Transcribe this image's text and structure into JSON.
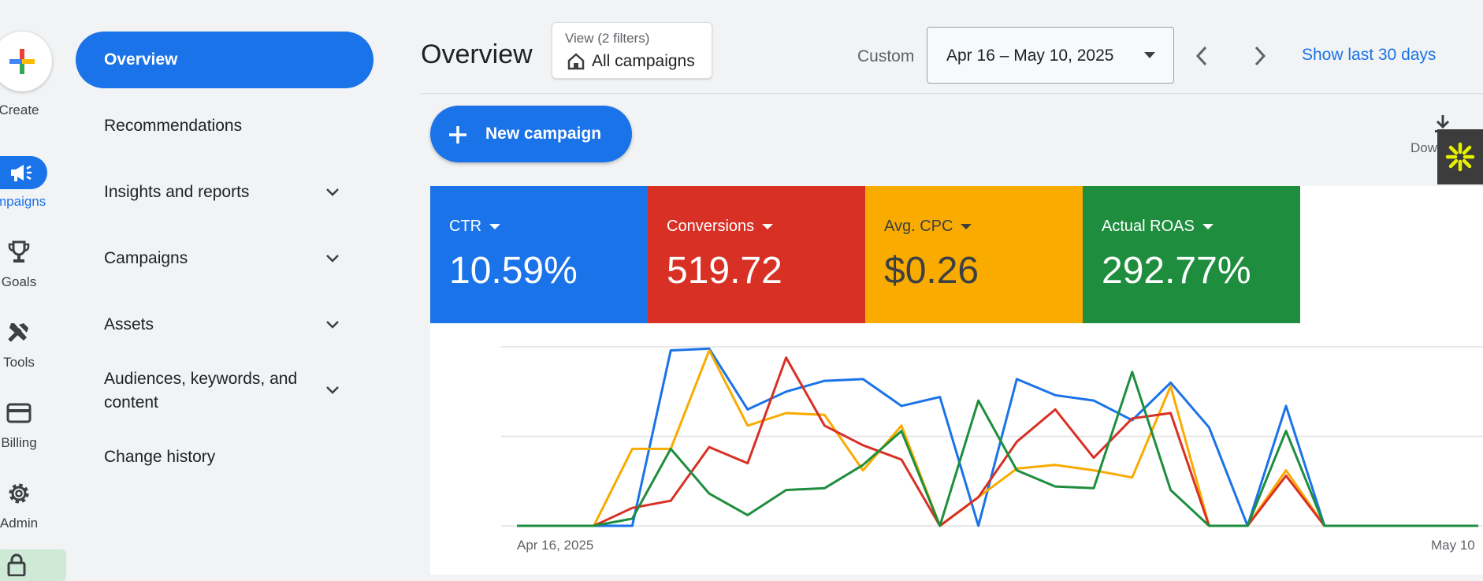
{
  "rail": {
    "create_label": "Create",
    "items": [
      {
        "label": "mpaigns",
        "icon": "megaphone-icon"
      },
      {
        "label": "Goals",
        "icon": "trophy-icon"
      },
      {
        "label": "Tools",
        "icon": "tools-icon"
      },
      {
        "label": "Billing",
        "icon": "credit-card-icon"
      },
      {
        "label": "Admin",
        "icon": "gear-icon"
      }
    ]
  },
  "nav": {
    "active": "Overview",
    "items": [
      {
        "label": "Recommendations"
      },
      {
        "label": "Insights and reports"
      },
      {
        "label": "Campaigns"
      },
      {
        "label": "Assets"
      },
      {
        "label": "Audiences, keywords, and content"
      },
      {
        "label": "Change history"
      }
    ]
  },
  "header": {
    "title": "Overview",
    "view_subtitle": "View (2 filters)",
    "view_value": "All campaigns",
    "custom_label": "Custom",
    "date_range": "Apr 16 – May 10, 2025",
    "show_last": "Show last 30 days",
    "download_label": "Dow"
  },
  "actions": {
    "new_campaign": "New campaign"
  },
  "metrics": [
    {
      "label": "CTR",
      "value": "10.59%",
      "color": "#1a73e8"
    },
    {
      "label": "Conversions",
      "value": "519.72",
      "color": "#d93025"
    },
    {
      "label": "Avg. CPC",
      "value": "$0.26",
      "color": "#f9ab00"
    },
    {
      "label": "Actual ROAS",
      "value": "292.77%",
      "color": "#1e8e3e"
    }
  ],
  "chart_data": {
    "type": "line",
    "x_start_label": "Apr 16, 2025",
    "x_end_label": "May 10",
    "ylim": [
      0,
      100
    ],
    "grid": true,
    "series": [
      {
        "color": "#1a73e8",
        "values": [
          0,
          0,
          0,
          0,
          98,
          99,
          65,
          75,
          81,
          82,
          67,
          72,
          0,
          82,
          73,
          70,
          59,
          80,
          55,
          0,
          67,
          0,
          0,
          0,
          0,
          0
        ]
      },
      {
        "color": "#f9ab00",
        "values": [
          0,
          0,
          0,
          43,
          43,
          98,
          56,
          63,
          62,
          31,
          56,
          0,
          16,
          32,
          34,
          31,
          27,
          78,
          0,
          0,
          31,
          0,
          0,
          0,
          0,
          0
        ]
      },
      {
        "color": "#d93025",
        "values": [
          0,
          0,
          0,
          10,
          14,
          44,
          35,
          94,
          56,
          45,
          37,
          0,
          16,
          47,
          65,
          38,
          60,
          63,
          0,
          0,
          28,
          0,
          0,
          0,
          0,
          0
        ]
      },
      {
        "color": "#1e8e3e",
        "values": [
          0,
          0,
          0,
          4,
          43,
          18,
          6,
          20,
          21,
          34,
          53,
          0,
          70,
          31,
          22,
          21,
          86,
          20,
          0,
          0,
          53,
          0,
          0,
          0,
          0,
          0
        ]
      }
    ]
  },
  "colors": {
    "accent": "#1a73e8",
    "background": "#f1f3f4"
  }
}
